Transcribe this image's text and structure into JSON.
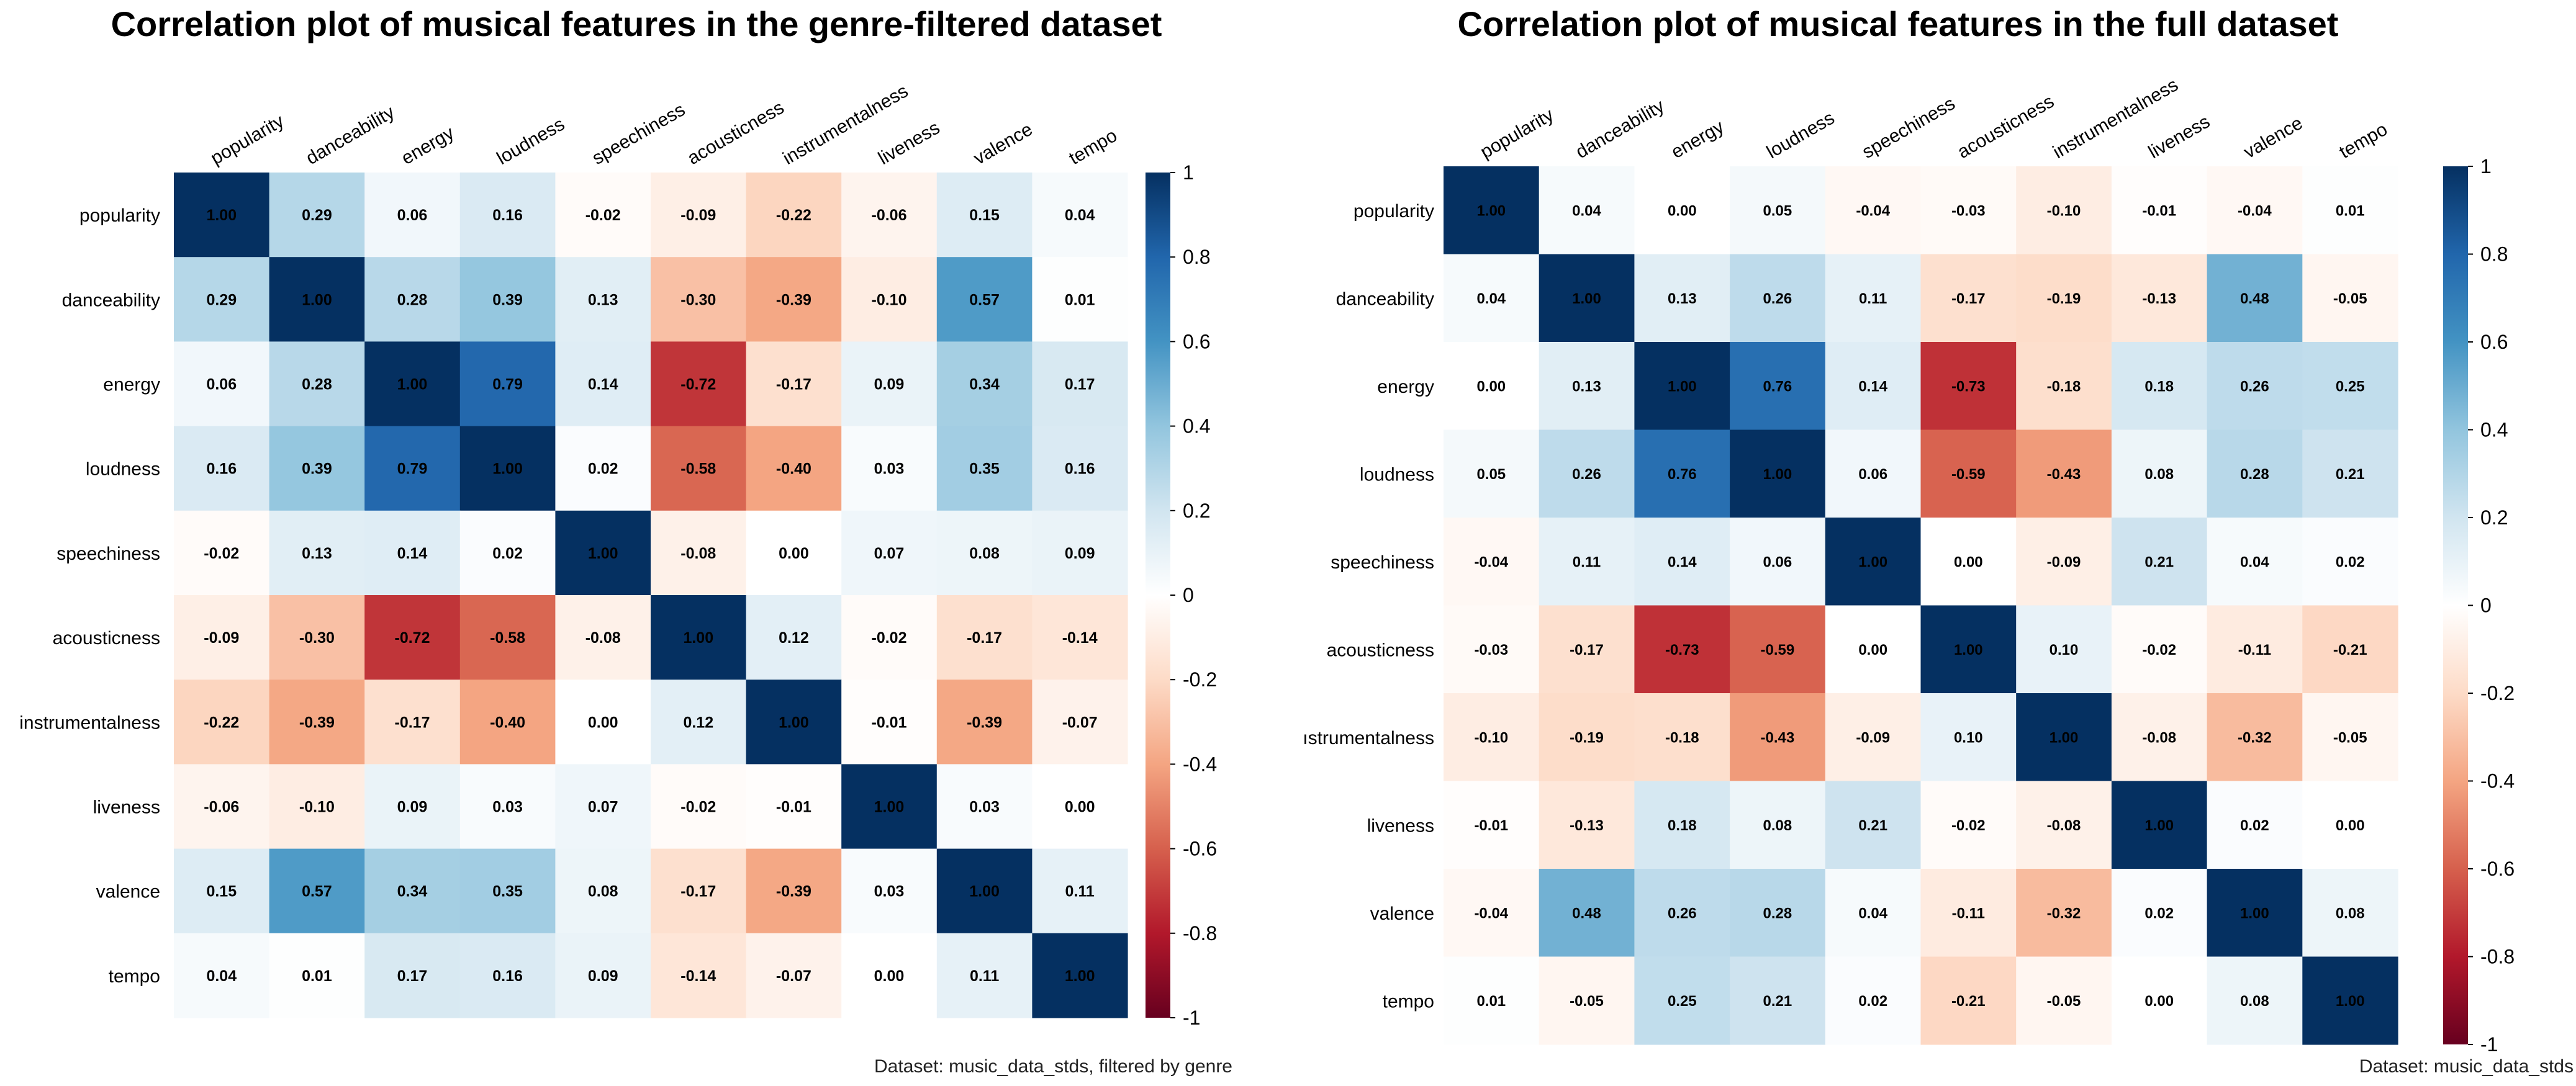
{
  "chart_data": [
    {
      "type": "heatmap",
      "title": "Correlation plot of musical features in the genre-filtered dataset",
      "caption": "Dataset: music_data_stds, filtered by genre",
      "row_labels": [
        "popularity",
        "danceability",
        "energy",
        "loudness",
        "speechiness",
        "acousticness",
        "instrumentalness",
        "liveness",
        "valence",
        "tempo"
      ],
      "col_labels": [
        "popularity",
        "danceability",
        "energy",
        "loudness",
        "speechiness",
        "acousticness",
        "instrumentalness",
        "liveness",
        "valence",
        "tempo"
      ],
      "values": [
        [
          1.0,
          0.29,
          0.06,
          0.16,
          -0.02,
          -0.09,
          -0.22,
          -0.06,
          0.15,
          0.04
        ],
        [
          0.29,
          1.0,
          0.28,
          0.39,
          0.13,
          -0.3,
          -0.39,
          -0.1,
          0.57,
          0.01
        ],
        [
          0.06,
          0.28,
          1.0,
          0.79,
          0.14,
          -0.72,
          -0.17,
          0.09,
          0.34,
          0.17
        ],
        [
          0.16,
          0.39,
          0.79,
          1.0,
          0.02,
          -0.58,
          -0.4,
          0.03,
          0.35,
          0.16
        ],
        [
          -0.02,
          0.13,
          0.14,
          0.02,
          1.0,
          -0.08,
          0.0,
          0.07,
          0.08,
          0.09
        ],
        [
          -0.09,
          -0.3,
          -0.72,
          -0.58,
          -0.08,
          1.0,
          0.12,
          -0.02,
          -0.17,
          -0.14
        ],
        [
          -0.22,
          -0.39,
          -0.17,
          -0.4,
          0.0,
          0.12,
          1.0,
          -0.01,
          -0.39,
          -0.07
        ],
        [
          -0.06,
          -0.1,
          0.09,
          0.03,
          0.07,
          -0.02,
          -0.01,
          1.0,
          0.03,
          0.0
        ],
        [
          0.15,
          0.57,
          0.34,
          0.35,
          0.08,
          -0.17,
          -0.39,
          0.03,
          1.0,
          0.11
        ],
        [
          0.04,
          0.01,
          0.17,
          0.16,
          0.09,
          -0.14,
          -0.07,
          0.0,
          0.11,
          1.0
        ]
      ],
      "colorbar_ticks": [
        "1",
        "0.8",
        "0.6",
        "0.4",
        "0.2",
        "0",
        "-0.2",
        "-0.4",
        "-0.6",
        "-0.8",
        "-1"
      ],
      "color_range": [
        -1,
        1
      ]
    },
    {
      "type": "heatmap",
      "title": "Correlation plot of musical features in the full dataset",
      "caption": "Dataset: music_data_stds",
      "row_labels": [
        "popularity",
        "danceability",
        "energy",
        "loudness",
        "speechiness",
        "acousticness",
        "ıstrumentalness",
        "liveness",
        "valence",
        "tempo"
      ],
      "col_labels": [
        "popularity",
        "danceability",
        "energy",
        "loudness",
        "speechiness",
        "acousticness",
        "instrumentalness",
        "liveness",
        "valence",
        "tempo"
      ],
      "values": [
        [
          1.0,
          0.04,
          0.0,
          0.05,
          -0.04,
          -0.03,
          -0.1,
          -0.01,
          -0.04,
          0.01
        ],
        [
          0.04,
          1.0,
          0.13,
          0.26,
          0.11,
          -0.17,
          -0.19,
          -0.13,
          0.48,
          -0.05
        ],
        [
          0.0,
          0.13,
          1.0,
          0.76,
          0.14,
          -0.73,
          -0.18,
          0.18,
          0.26,
          0.25
        ],
        [
          0.05,
          0.26,
          0.76,
          1.0,
          0.06,
          -0.59,
          -0.43,
          0.08,
          0.28,
          0.21
        ],
        [
          -0.04,
          0.11,
          0.14,
          0.06,
          1.0,
          0.0,
          -0.09,
          0.21,
          0.04,
          0.02
        ],
        [
          -0.03,
          -0.17,
          -0.73,
          -0.59,
          0.0,
          1.0,
          0.1,
          -0.02,
          -0.11,
          -0.21
        ],
        [
          -0.1,
          -0.19,
          -0.18,
          -0.43,
          -0.09,
          0.1,
          1.0,
          -0.08,
          -0.32,
          -0.05
        ],
        [
          -0.01,
          -0.13,
          0.18,
          0.08,
          0.21,
          -0.02,
          -0.08,
          1.0,
          0.02,
          0.0
        ],
        [
          -0.04,
          0.48,
          0.26,
          0.28,
          0.04,
          -0.11,
          -0.32,
          0.02,
          1.0,
          0.08
        ],
        [
          0.01,
          -0.05,
          0.25,
          0.21,
          0.02,
          -0.21,
          -0.05,
          0.0,
          0.08,
          1.0
        ]
      ],
      "colorbar_ticks": [
        "1",
        "0.8",
        "0.6",
        "0.4",
        "0.2",
        "0",
        "-0.2",
        "-0.4",
        "-0.6",
        "-0.8",
        "-1"
      ],
      "color_range": [
        -1,
        1
      ]
    }
  ]
}
